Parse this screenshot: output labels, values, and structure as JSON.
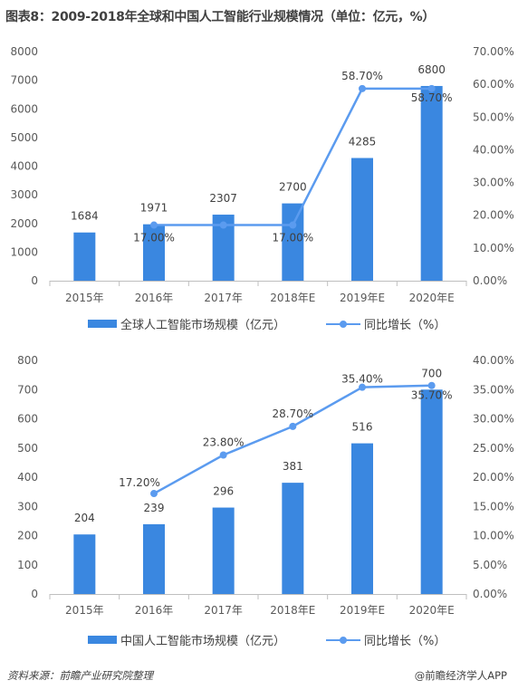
{
  "title": "图表8：2009-2018年全球和中国人工智能行业规模情况（单位：亿元，%）",
  "colors": {
    "bar": "#3a87e0",
    "line": "#5b9bef",
    "axis": "#bfbfbf",
    "text": "#595959"
  },
  "chart_data": [
    {
      "type": "bar",
      "categories": [
        "2015年",
        "2016年",
        "2017年",
        "2018年E",
        "2019年E",
        "2020年E"
      ],
      "series": [
        {
          "name": "全球人工智能市场规模（亿元）",
          "type": "bar",
          "axis": "left",
          "values": [
            1684,
            1971,
            2307,
            2700,
            4285,
            6800
          ],
          "labels": [
            "1684",
            "1971",
            "2307",
            "2700",
            "4285",
            "6800"
          ]
        },
        {
          "name": "同比增长（%）",
          "type": "line",
          "axis": "right",
          "values": [
            null,
            17.0,
            17.0,
            17.0,
            58.7,
            58.7
          ],
          "labels": [
            null,
            "17.00%",
            null,
            "17.00%",
            "58.70%",
            "58.70%"
          ]
        }
      ],
      "ylim": [
        0,
        8000
      ],
      "yticks": [
        "0",
        "1000",
        "2000",
        "3000",
        "4000",
        "5000",
        "6000",
        "7000",
        "8000"
      ],
      "y2lim": [
        0,
        70
      ],
      "y2ticks": [
        "0.00%",
        "10.00%",
        "20.00%",
        "30.00%",
        "40.00%",
        "50.00%",
        "60.00%",
        "70.00%"
      ],
      "legend_position": "bottom"
    },
    {
      "type": "bar",
      "categories": [
        "2015年",
        "2016年",
        "2017年",
        "2018年E",
        "2019年E",
        "2020年E"
      ],
      "series": [
        {
          "name": "中国人工智能市场规模（亿元）",
          "type": "bar",
          "axis": "left",
          "values": [
            204,
            239,
            296,
            381,
            516,
            700
          ],
          "labels": [
            "204",
            "239",
            "296",
            "381",
            "516",
            "700"
          ]
        },
        {
          "name": "同比增长（%）",
          "type": "line",
          "axis": "right",
          "values": [
            null,
            17.2,
            23.8,
            28.7,
            35.4,
            35.7
          ],
          "labels": [
            null,
            "17.20%",
            "23.80%",
            "28.70%",
            "35.40%",
            "35.70%"
          ]
        }
      ],
      "ylim": [
        0,
        800
      ],
      "yticks": [
        "0",
        "100",
        "200",
        "300",
        "400",
        "500",
        "600",
        "700",
        "800"
      ],
      "y2lim": [
        0,
        40
      ],
      "y2ticks": [
        "0.00%",
        "5.00%",
        "10.00%",
        "15.00%",
        "20.00%",
        "25.00%",
        "30.00%",
        "35.00%",
        "40.00%"
      ],
      "legend_position": "bottom"
    }
  ],
  "footer": {
    "source": "资料来源：前瞻产业研究院整理",
    "brand": "@前瞻经济学人APP"
  }
}
